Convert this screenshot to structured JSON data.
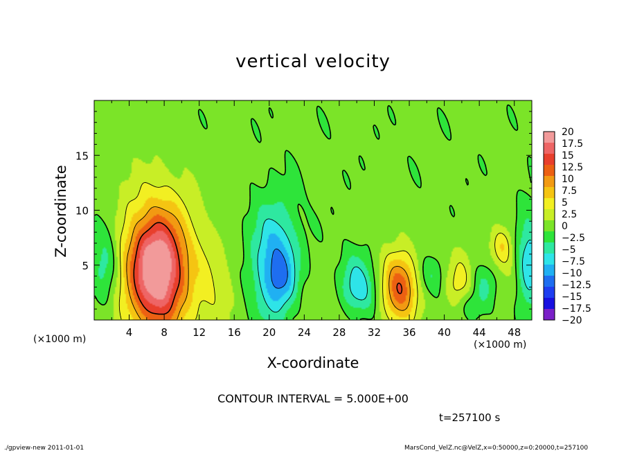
{
  "header": {
    "title": "vertical velocity"
  },
  "footer": {
    "contour_interval": "CONTOUR INTERVAL = 5.000E+00",
    "time": "t=257100 s",
    "program": "./gpview-new  2011-01-01",
    "source": "MarsCond_VelZ.nc@VelZ,x=0:50000,z=0:20000,t=257100"
  },
  "chart_data": {
    "type": "heatmap",
    "title": "vertical velocity",
    "xlabel": "X-coordinate",
    "ylabel": "Z-coordinate",
    "xunit": "(×1000 m)",
    "yunit": "(×1000 m)",
    "xlim": [
      0,
      50
    ],
    "ylim": [
      0,
      20
    ],
    "xticks": [
      4,
      8,
      12,
      16,
      20,
      24,
      28,
      32,
      36,
      40,
      44,
      48
    ],
    "yticks": [
      5,
      10,
      15
    ],
    "contour_interval": 5,
    "colorbar": {
      "levels": [
        20,
        17.5,
        15,
        12.5,
        10,
        7.5,
        5,
        2.5,
        0,
        -2.5,
        -5,
        -7.5,
        -10,
        -12.5,
        -15,
        -17.5,
        -20
      ],
      "labels": [
        "20",
        "17.5",
        "15",
        "12.5",
        "10",
        "7.5",
        "5",
        "2.5",
        "0",
        "−2.5",
        "−5",
        "−7.5",
        "−10",
        "−12.5",
        "−15",
        "−17.5",
        "−20"
      ],
      "colors": [
        "#f29a9a",
        "#ee6565",
        "#e83f2c",
        "#ec6012",
        "#f29a12",
        "#f5c412",
        "#f2ef22",
        "#c8ee26",
        "#7be428",
        "#2ee43a",
        "#2ee8a0",
        "#2ee4e8",
        "#20b0f2",
        "#1e6ef0",
        "#1e3ef0",
        "#1810e0",
        "#7a20c8"
      ]
    },
    "features": [
      {
        "x": 7.2,
        "z": 4.6,
        "sx": 2.2,
        "sz": 3.6,
        "w": 17.5
      },
      {
        "x": 7.2,
        "z": 4.6,
        "sx": 4.0,
        "sz": 5.6,
        "w": 7
      },
      {
        "x": 34.9,
        "z": 2.9,
        "sx": 1.3,
        "sz": 2.0,
        "w": 11
      },
      {
        "x": 34.9,
        "z": 2.9,
        "sx": 2.2,
        "sz": 3.2,
        "w": 3.5
      },
      {
        "x": 41.8,
        "z": 3.4,
        "sx": 1.2,
        "sz": 2.0,
        "w": 6
      },
      {
        "x": 46.6,
        "z": 6.8,
        "sx": 0.8,
        "sz": 1.2,
        "w": 5
      },
      {
        "x": 14.0,
        "z": 2.6,
        "sx": 1.6,
        "sz": 3.2,
        "w": 2.5
      },
      {
        "x": 20.6,
        "z": 5.2,
        "sx": 1.8,
        "sz": 3.6,
        "w": -10
      },
      {
        "x": 21.5,
        "z": 3.6,
        "sx": 1.1,
        "sz": 1.8,
        "w": -4
      },
      {
        "x": 1.3,
        "z": 5.2,
        "sx": 1.2,
        "sz": 3.0,
        "w": -6
      },
      {
        "x": 30.3,
        "z": 2.5,
        "sx": 1.6,
        "sz": 1.6,
        "w": -7
      },
      {
        "x": 30.0,
        "z": 4.5,
        "sx": 1.2,
        "sz": 1.6,
        "w": -3
      },
      {
        "x": 38.6,
        "z": 4.0,
        "sx": 1.2,
        "sz": 1.3,
        "w": -4
      },
      {
        "x": 44.8,
        "z": 3.3,
        "sx": 1.2,
        "sz": 1.4,
        "w": -5
      },
      {
        "x": 49.6,
        "z": 5.2,
        "sx": 1.0,
        "sz": 3.0,
        "w": -8
      },
      {
        "x": 43.0,
        "z": 1.3,
        "sx": 1.2,
        "sz": 1.0,
        "w": -4
      },
      {
        "x": 26.5,
        "z": 1.5,
        "sx": 3.0,
        "sz": 2.0,
        "w": 2
      },
      {
        "x": 46.5,
        "z": 4.5,
        "sx": 2.0,
        "sz": 3.0,
        "w": 2.5
      }
    ]
  }
}
